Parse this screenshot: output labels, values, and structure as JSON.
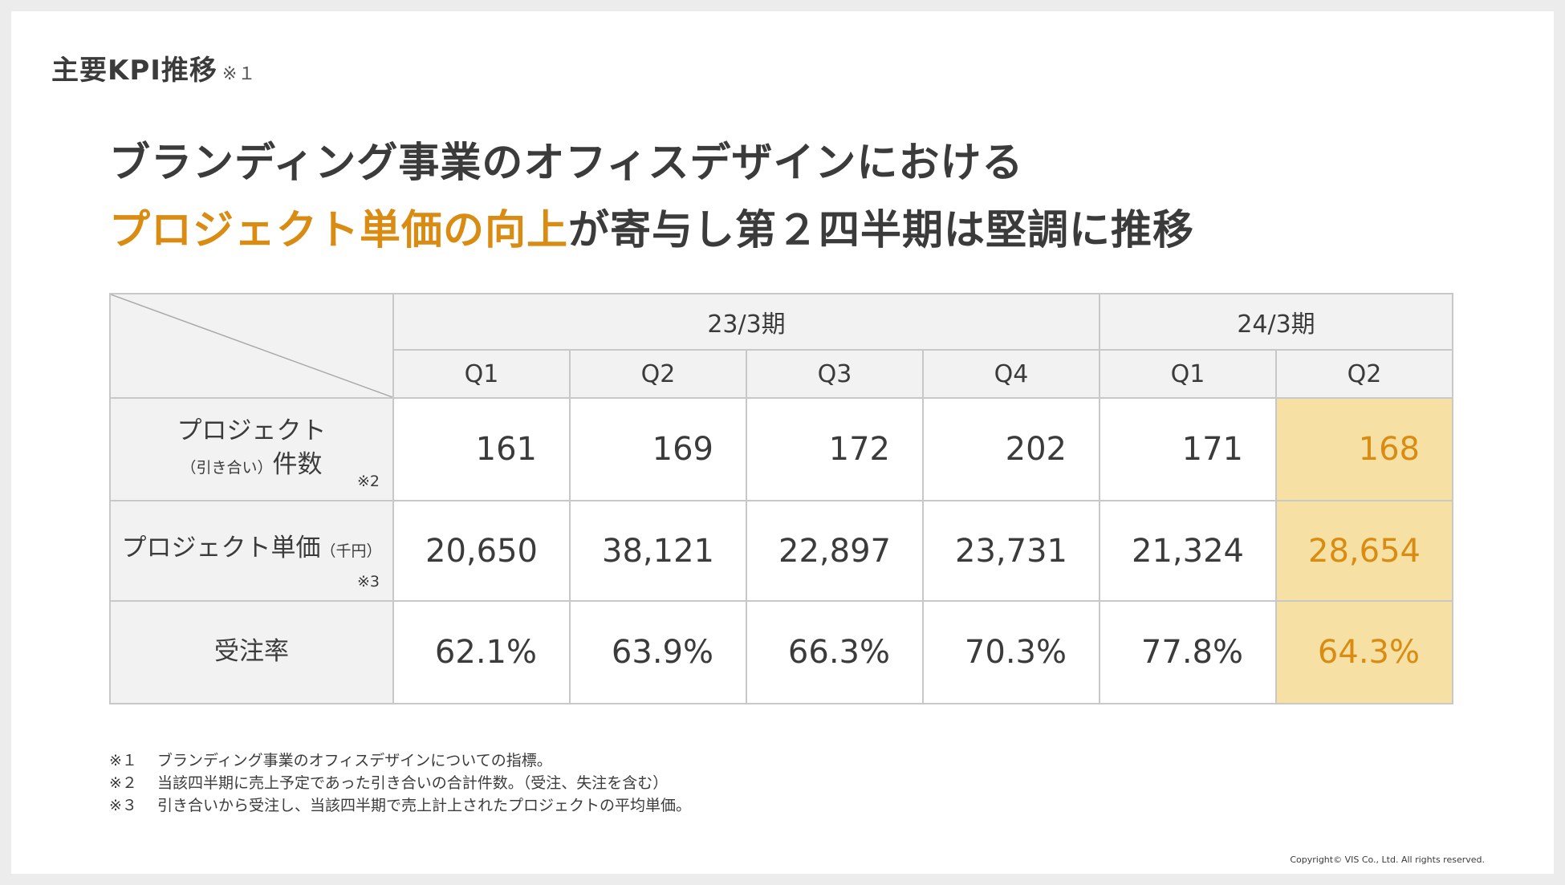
{
  "section": {
    "title": "主要KPI推移",
    "note_mark": "※１"
  },
  "headline": {
    "line1": "ブランディング事業のオフィスデザインにおける",
    "line2_accent": "プロジェクト単価の向上",
    "line2_rest": "が寄与し第２四半期は堅調に推移"
  },
  "table": {
    "periods": [
      "23/3期",
      "24/3期"
    ],
    "quarters": [
      "Q1",
      "Q2",
      "Q3",
      "Q4",
      "Q1",
      "Q2"
    ],
    "rows": [
      {
        "label_main": "プロジェクト",
        "label_sub": "（引き合い）",
        "label_tail": "件数",
        "note": "※2",
        "values": [
          "161",
          "169",
          "172",
          "202",
          "171",
          "168"
        ]
      },
      {
        "label_main": "プロジェクト単価",
        "label_sub": "（千円）",
        "note": "※3",
        "values": [
          "20,650",
          "38,121",
          "22,897",
          "23,731",
          "21,324",
          "28,654"
        ]
      },
      {
        "label_main": "受注率",
        "values": [
          "62.1%",
          "63.9%",
          "66.3%",
          "70.3%",
          "77.8%",
          "64.3%"
        ]
      }
    ],
    "highlight_color": "#f6e0a3",
    "accent_color": "#d98b12"
  },
  "footnotes": [
    {
      "mark": "※１",
      "text": "ブランディング事業のオフィスデザインについての指標。"
    },
    {
      "mark": "※２",
      "text": "当該四半期に売上予定であった引き合いの合計件数。（受注、失注を含む）"
    },
    {
      "mark": "※３",
      "text": "引き合いから受注し、当該四半期で売上計上されたプロジェクトの平均単価。"
    }
  ],
  "copyright": "Copyright© VIS Co., Ltd. All rights reserved."
}
